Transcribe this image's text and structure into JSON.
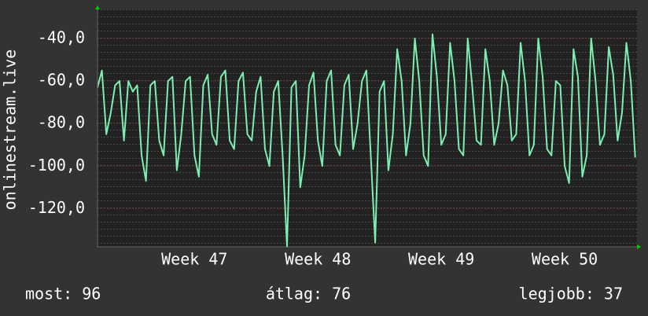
{
  "chart_data": {
    "type": "line",
    "ylabel": "onlinestream.live",
    "color": "#7eeeb0",
    "xlim": [
      0,
      30.6
    ],
    "xticks": [
      {
        "value": 5.5,
        "label": "Week 47"
      },
      {
        "value": 12.5,
        "label": "Week 48"
      },
      {
        "value": 19.5,
        "label": "Week 49"
      },
      {
        "value": 26.5,
        "label": "Week 50"
      }
    ],
    "ylim": [
      -138,
      -26.3
    ],
    "yticks": [
      {
        "value": -120,
        "label": "-120,0"
      },
      {
        "value": -100,
        "label": "-100,0"
      },
      {
        "value": -80,
        "label": "-80,0"
      },
      {
        "value": -60,
        "label": "-60,0"
      },
      {
        "value": -40,
        "label": "-40,0"
      }
    ],
    "grid": true,
    "x": [
      0,
      0.25,
      0.5,
      0.75,
      1,
      1.25,
      1.5,
      1.75,
      2,
      2.25,
      2.5,
      2.75,
      3,
      3.25,
      3.5,
      3.75,
      4,
      4.25,
      4.5,
      4.75,
      5,
      5.25,
      5.5,
      5.75,
      6,
      6.25,
      6.5,
      6.75,
      7,
      7.25,
      7.5,
      7.75,
      8,
      8.25,
      8.5,
      8.75,
      9,
      9.25,
      9.5,
      9.75,
      10,
      10.25,
      10.5,
      10.75,
      11,
      11.25,
      11.5,
      11.75,
      12,
      12.25,
      12.5,
      12.75,
      13,
      13.25,
      13.5,
      13.75,
      14,
      14.25,
      14.5,
      14.75,
      15,
      15.25,
      15.5,
      15.75,
      16,
      16.25,
      16.5,
      16.75,
      17,
      17.25,
      17.5,
      17.75,
      18,
      18.25,
      18.5,
      18.75,
      19,
      19.25,
      19.5,
      19.75,
      20,
      20.25,
      20.5,
      20.75,
      21,
      21.25,
      21.5,
      21.75,
      22,
      22.25,
      22.5,
      22.75,
      23,
      23.25,
      23.5,
      23.75,
      24,
      24.25,
      24.5,
      24.75,
      25,
      25.25,
      25.5,
      25.75,
      26,
      26.25,
      26.5,
      26.75,
      27,
      27.25,
      27.5,
      27.75,
      28,
      28.25,
      28.5,
      28.75,
      29,
      29.25,
      29.5,
      29.75,
      30,
      30.25,
      30.5
    ],
    "values": [
      -63,
      -55,
      -85,
      -75,
      -62,
      -60,
      -88,
      -60,
      -65,
      -62,
      -95,
      -107,
      -62,
      -60,
      -88,
      -95,
      -60,
      -58,
      -102,
      -85,
      -60,
      -58,
      -95,
      -105,
      -62,
      -57,
      -85,
      -90,
      -58,
      -55,
      -88,
      -92,
      -60,
      -56,
      -85,
      -88,
      -65,
      -58,
      -92,
      -100,
      -65,
      -60,
      -95,
      -138,
      -63,
      -60,
      -110,
      -95,
      -62,
      -56,
      -88,
      -100,
      -60,
      -55,
      -90,
      -95,
      -62,
      -57,
      -92,
      -80,
      -60,
      -55,
      -95,
      -136,
      -65,
      -60,
      -102,
      -85,
      -45,
      -60,
      -95,
      -80,
      -40,
      -60,
      -95,
      -100,
      -38,
      -58,
      -90,
      -85,
      -42,
      -60,
      -92,
      -95,
      -40,
      -62,
      -88,
      -90,
      -45,
      -60,
      -90,
      -80,
      -55,
      -62,
      -88,
      -85,
      -42,
      -60,
      -95,
      -90,
      -40,
      -58,
      -92,
      -95,
      -60,
      -62,
      -100,
      -108,
      -45,
      -58,
      -105,
      -95,
      -40,
      -60,
      -90,
      -85,
      -44,
      -57,
      -88,
      -75,
      -42,
      -60,
      -96
    ],
    "annotations": [
      "most: 96",
      "átlag: 76",
      "legjobb: 37"
    ]
  }
}
